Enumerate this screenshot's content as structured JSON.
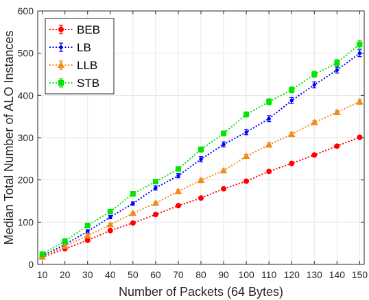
{
  "chart_data": {
    "type": "line",
    "title": "",
    "xlabel": "Number of Packets (64 Bytes)",
    "ylabel": "Median Total Number of ALO Instances",
    "x": [
      10,
      20,
      30,
      40,
      50,
      60,
      70,
      80,
      90,
      100,
      110,
      120,
      130,
      140,
      150
    ],
    "xlim": [
      8,
      152
    ],
    "ylim": [
      0,
      600
    ],
    "xticks": [
      10,
      20,
      30,
      40,
      50,
      60,
      70,
      80,
      90,
      100,
      110,
      120,
      130,
      140,
      150
    ],
    "yticks": [
      0,
      100,
      200,
      300,
      400,
      500,
      600
    ],
    "grid": true,
    "legend_position": "top-left",
    "series": [
      {
        "name": "BEB",
        "color": "#ff0000",
        "marker": "circle",
        "values": [
          17,
          37,
          57,
          80,
          98,
          118,
          139,
          157,
          179,
          197,
          220,
          239,
          259,
          280,
          301
        ],
        "errors": [
          2,
          2,
          3,
          3,
          3,
          3,
          3,
          3,
          3,
          3,
          3,
          3,
          3,
          3,
          3
        ]
      },
      {
        "name": "LB",
        "color": "#0000ff",
        "marker": "point",
        "values": [
          20,
          47,
          78,
          112,
          144,
          181,
          210,
          249,
          284,
          313,
          345,
          388,
          425,
          460,
          500
        ],
        "errors": [
          3,
          3,
          4,
          4,
          4,
          5,
          5,
          6,
          6,
          6,
          7,
          7,
          7,
          7,
          8
        ]
      },
      {
        "name": "LLB",
        "color": "#f08c1e",
        "marker": "triangle",
        "values": [
          18,
          43,
          68,
          94,
          121,
          145,
          173,
          199,
          222,
          256,
          283,
          308,
          336,
          360,
          385
        ],
        "errors": [
          2,
          3,
          3,
          3,
          3,
          4,
          4,
          4,
          4,
          4,
          5,
          5,
          5,
          5,
          6
        ]
      },
      {
        "name": "STB",
        "color": "#00e600",
        "marker": "square",
        "values": [
          24,
          55,
          92,
          125,
          167,
          196,
          226,
          272,
          310,
          355,
          385,
          413,
          450,
          477,
          521
        ],
        "errors": [
          3,
          3,
          4,
          4,
          5,
          5,
          5,
          6,
          6,
          6,
          7,
          7,
          7,
          8,
          9
        ]
      }
    ]
  }
}
